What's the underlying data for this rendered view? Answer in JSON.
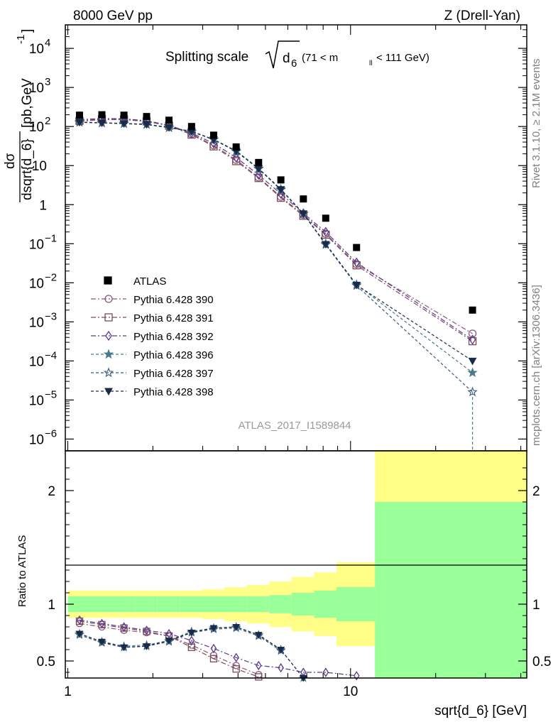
{
  "header": {
    "left": "8000 GeV pp",
    "right": "Z (Drell-Yan)"
  },
  "side_labels": {
    "rivet": "Rivet 3.1.10, ≥ 2.1M events",
    "mcplots": "mcplots.cern.ch [arXiv:1306.3436]"
  },
  "analysis_id": "ATLAS_2017_I1589844",
  "chart_data": {
    "type": "scatter",
    "title_prefix": "Splitting scale",
    "title_var": "d",
    "title_var_sub": "6",
    "title_range_a": "(71 < m",
    "title_range_sub": "ll",
    "title_range_b": "< 111 GeV)",
    "ylabel_num": "dσ",
    "ylabel_den": "dsqrt{d_6}",
    "ylabel_units": "[pb,GeV",
    "ylabel_units_sup": "-1",
    "ylabel_units_close": "]",
    "xlabel": "sqrt{d_6} [GeV]",
    "ratio_ylabel": "Ratio to ATLAS",
    "xscale": "log",
    "xlim": [
      0.98,
      42
    ],
    "yscale": "log",
    "ylim": [
      5e-07,
      40000
    ],
    "ratio_ylim": [
      0.35,
      2.35
    ],
    "x_ticks": [
      {
        "value": 1,
        "label": "1"
      },
      {
        "value": 10,
        "label": "10"
      }
    ],
    "y_ticks": [
      {
        "value": 10000,
        "base": "10",
        "exp": "4"
      },
      {
        "value": 1000,
        "base": "10",
        "exp": "3"
      },
      {
        "value": 100,
        "base": "10",
        "exp": "2"
      },
      {
        "value": 10,
        "base": "10",
        "exp": ""
      },
      {
        "value": 1,
        "base": "1",
        "exp": ""
      },
      {
        "value": 0.1,
        "base": "10",
        "exp": "−1"
      },
      {
        "value": 0.01,
        "base": "10",
        "exp": "−2"
      },
      {
        "value": 0.001,
        "base": "10",
        "exp": "−3"
      },
      {
        "value": 0.0001,
        "base": "10",
        "exp": "−4"
      },
      {
        "value": 1e-05,
        "base": "10",
        "exp": "−5"
      },
      {
        "value": 1e-06,
        "base": "10",
        "exp": "−6"
      }
    ],
    "ratio_ticks": [
      {
        "value": 2,
        "label": "2"
      },
      {
        "value": 1,
        "label": "1"
      },
      {
        "value": 0.5,
        "label": "0.5"
      }
    ],
    "bin_edges": [
      1.0,
      1.2,
      1.44,
      1.73,
      2.07,
      2.49,
      2.99,
      3.58,
      4.3,
      5.16,
      6.19,
      7.43,
      8.92,
      12.2,
      42.0
    ],
    "x": [
      1.1,
      1.32,
      1.58,
      1.9,
      2.28,
      2.74,
      3.28,
      3.94,
      4.73,
      5.67,
      6.81,
      8.17,
      10.5,
      27.0
    ],
    "atlas": {
      "name": "ATLAS",
      "color": "#000000",
      "values": [
        195,
        200,
        195,
        180,
        145,
        100,
        60,
        30,
        12,
        4.3,
        1.4,
        0.45,
        0.08,
        0.002
      ],
      "band_stat": [
        0.07,
        0.07,
        0.07,
        0.07,
        0.07,
        0.07,
        0.07,
        0.07,
        0.07,
        0.08,
        0.1,
        0.12,
        0.15,
        0.9
      ],
      "band_total": [
        0.12,
        0.12,
        0.12,
        0.12,
        0.12,
        0.12,
        0.13,
        0.15,
        0.17,
        0.2,
        0.24,
        0.28,
        0.37,
        1.4
      ],
      "stat_color": "#99ff99",
      "total_color": "#ffff88"
    },
    "series": [
      {
        "name": "Pythia 6.428 390",
        "marker": "circle-open",
        "dash": "7,3,2,3",
        "color": "#8a5a7a",
        "values": [
          135,
          150,
          150,
          135,
          105,
          64,
          33,
          14,
          5.0,
          1.6,
          0.55,
          0.18,
          0.03,
          0.0005
        ],
        "ratio": [
          0.83,
          0.8,
          0.77,
          0.75,
          0.72,
          0.64,
          0.55,
          0.46,
          0.38,
          0.33,
          0.31,
          0.31,
          null,
          null
        ]
      },
      {
        "name": "Pythia 6.428 391",
        "marker": "square-open",
        "dash": "7,3,2,3",
        "color": "#7a4a5a",
        "values": [
          140,
          155,
          152,
          135,
          105,
          62,
          31,
          13,
          4.8,
          1.5,
          0.52,
          0.17,
          0.028,
          0.00032
        ],
        "ratio": [
          0.85,
          0.82,
          0.79,
          0.76,
          0.72,
          0.62,
          0.52,
          0.43,
          0.36,
          0.32,
          0.3,
          0.3,
          null,
          null
        ]
      },
      {
        "name": "Pythia 6.428 392",
        "marker": "diamond-open",
        "dash": "7,3,2,3",
        "color": "#5a3a8a",
        "values": [
          150,
          160,
          158,
          140,
          108,
          68,
          37,
          16,
          5.8,
          1.9,
          0.6,
          0.2,
          0.033,
          0.00035
        ],
        "ratio": [
          0.86,
          0.83,
          0.8,
          0.77,
          0.74,
          0.68,
          0.61,
          0.53,
          0.46,
          0.44,
          0.4,
          0.4,
          0.37,
          null
        ]
      },
      {
        "name": "Pythia 6.428 396",
        "marker": "star-filled",
        "dash": "4,3",
        "color": "#4a7a8a",
        "values": [
          130,
          125,
          120,
          115,
          95,
          76,
          47,
          24,
          8.5,
          2.5,
          0.6,
          0.1,
          0.009,
          5e-05
        ],
        "ratio": [
          0.74,
          0.67,
          0.63,
          0.64,
          0.68,
          0.76,
          0.79,
          0.8,
          0.73,
          0.6,
          0.35,
          null,
          null,
          null
        ]
      },
      {
        "name": "Pythia 6.428 397",
        "marker": "star-open",
        "dash": "4,3",
        "color": "#3a5a7a",
        "values": [
          128,
          123,
          118,
          112,
          93,
          74,
          46,
          23,
          8.2,
          2.4,
          0.58,
          0.095,
          0.0085,
          1.6e-05
        ],
        "ratio": [
          0.73,
          0.66,
          0.62,
          0.63,
          0.67,
          0.75,
          0.78,
          0.79,
          0.72,
          0.59,
          0.34,
          null,
          null,
          null
        ]
      },
      {
        "name": "Pythia 6.428 398",
        "marker": "triangle-down-filled",
        "dash": "4,3",
        "color": "#1a2a4a",
        "values": [
          129,
          124,
          119,
          114,
          94,
          75,
          46,
          23.5,
          8.4,
          2.45,
          0.59,
          0.097,
          0.0088,
          0.0001
        ],
        "ratio": [
          0.74,
          0.67,
          0.62,
          0.63,
          0.68,
          0.75,
          0.79,
          0.8,
          0.73,
          0.6,
          0.35,
          null,
          null,
          null
        ]
      }
    ]
  }
}
